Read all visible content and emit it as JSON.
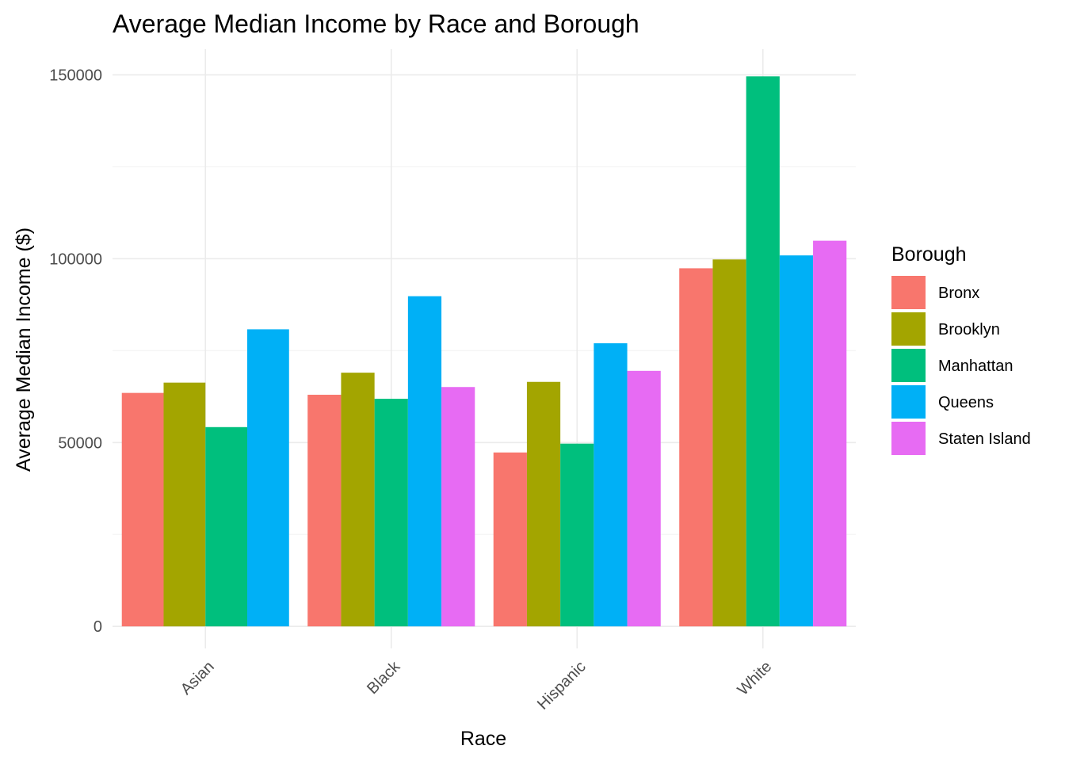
{
  "chart_data": {
    "type": "bar",
    "title": "Average Median Income by Race and Borough",
    "xlabel": "Race",
    "ylabel": "Average Median Income ($)",
    "categories": [
      "Asian",
      "Black",
      "Hispanic",
      "White"
    ],
    "y_ticks": [
      "0",
      "50000",
      "100000",
      "150000"
    ],
    "y_tick_values": [
      0,
      50000,
      100000,
      150000
    ],
    "ylim": [
      -6000,
      157000
    ],
    "grid": true,
    "legend": {
      "title": "Borough",
      "position": "right"
    },
    "series": [
      {
        "name": "Bronx",
        "color": "#F8766D",
        "values": [
          63500,
          63000,
          47300,
          97400
        ]
      },
      {
        "name": "Brooklyn",
        "color": "#A3A500",
        "values": [
          66300,
          69000,
          66500,
          99800
        ]
      },
      {
        "name": "Manhattan",
        "color": "#00BF7D",
        "values": [
          54200,
          61900,
          49700,
          149600
        ]
      },
      {
        "name": "Queens",
        "color": "#00B0F6",
        "values": [
          80800,
          89800,
          77000,
          100900
        ]
      },
      {
        "name": "Staten Island",
        "color": "#E76BF3",
        "values": [
          null,
          65100,
          69500,
          104900
        ]
      }
    ]
  }
}
